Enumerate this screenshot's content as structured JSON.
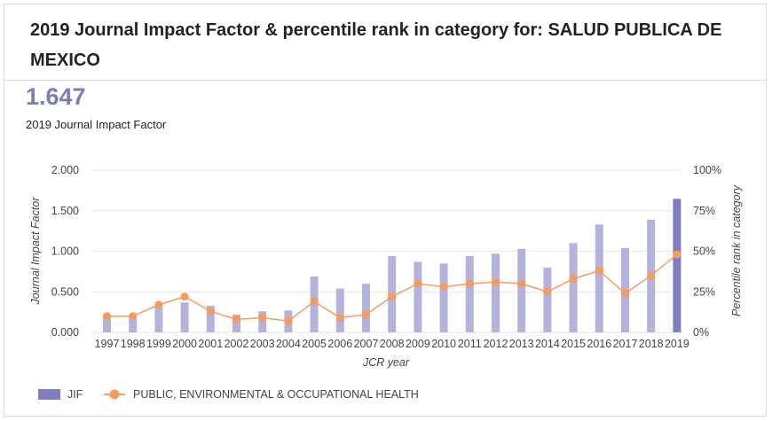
{
  "header": {
    "title": "2019 Journal Impact Factor & percentile rank in category for: SALUD PUBLICA DE MEXICO"
  },
  "metric": {
    "value": "1.647",
    "label": "2019 Journal Impact Factor"
  },
  "colors": {
    "bar": "#b3b3dd",
    "bar_highlight": "#7e7ec0",
    "line": "#f79a5c",
    "grid": "#e6e6e6",
    "text": "#444444"
  },
  "chart_data": {
    "type": "bar",
    "title": "",
    "xlabel": "JCR year",
    "ylabel_left": "Journal Impact Factor",
    "ylabel_right": "Percentile rank in category",
    "ylim_left": [
      0,
      2
    ],
    "ylim_right": [
      0,
      100
    ],
    "yticks_left": [
      "0.000",
      "0.500",
      "1.000",
      "1.500",
      "2.000"
    ],
    "yticks_right": [
      "0%",
      "25%",
      "50%",
      "75%",
      "100%"
    ],
    "grid": true,
    "legend_position": "bottom-left",
    "categories": [
      "1997",
      "1998",
      "1999",
      "2000",
      "2001",
      "2002",
      "2003",
      "2004",
      "2005",
      "2006",
      "2007",
      "2008",
      "2009",
      "2010",
      "2011",
      "2012",
      "2013",
      "2014",
      "2015",
      "2016",
      "2017",
      "2018",
      "2019"
    ],
    "series": [
      {
        "name": "JIF",
        "type": "bar",
        "axis": "left",
        "values": [
          0.21,
          0.2,
          0.31,
          0.37,
          0.33,
          0.22,
          0.26,
          0.27,
          0.69,
          0.54,
          0.6,
          0.94,
          0.87,
          0.85,
          0.94,
          0.97,
          1.03,
          0.8,
          1.1,
          1.33,
          1.04,
          1.39,
          1.647
        ]
      },
      {
        "name": "PUBLIC, ENVIRONMENTAL & OCCUPATIONAL HEALTH",
        "type": "line",
        "axis": "right",
        "values": [
          10,
          10,
          17,
          22,
          13,
          8,
          9,
          7,
          19,
          9,
          11,
          22,
          30,
          28,
          30,
          31,
          30,
          25,
          33,
          38,
          24,
          35,
          48
        ]
      }
    ]
  }
}
